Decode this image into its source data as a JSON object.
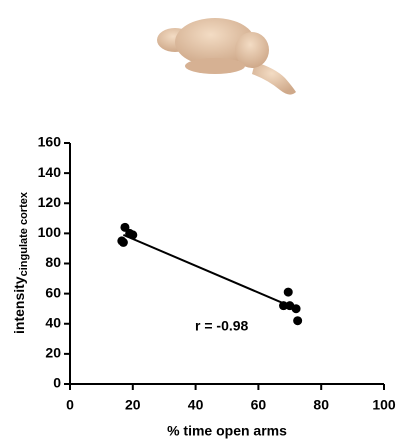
{
  "chart_data": {
    "type": "scatter",
    "x_label": "% time open arms",
    "y_label": "intensity",
    "y_label_subscript": "cingulate cortex",
    "annotation": "r = -0.98",
    "x": [
      17.5,
      16.5,
      17,
      19,
      20,
      69.5,
      68,
      70,
      72,
      72.5
    ],
    "values": [
      104,
      95,
      94,
      100,
      99,
      61,
      52,
      52,
      50,
      42
    ],
    "color": "#000000",
    "fit_line": {
      "x": [
        17,
        72
      ],
      "y": [
        99,
        50
      ]
    },
    "xlim": [
      0,
      100
    ],
    "xticks": [
      0,
      20,
      40,
      60,
      80,
      100
    ],
    "ylim": [
      0,
      160
    ],
    "yticks": [
      0,
      20,
      40,
      60,
      80,
      100,
      120,
      140,
      160
    ]
  }
}
